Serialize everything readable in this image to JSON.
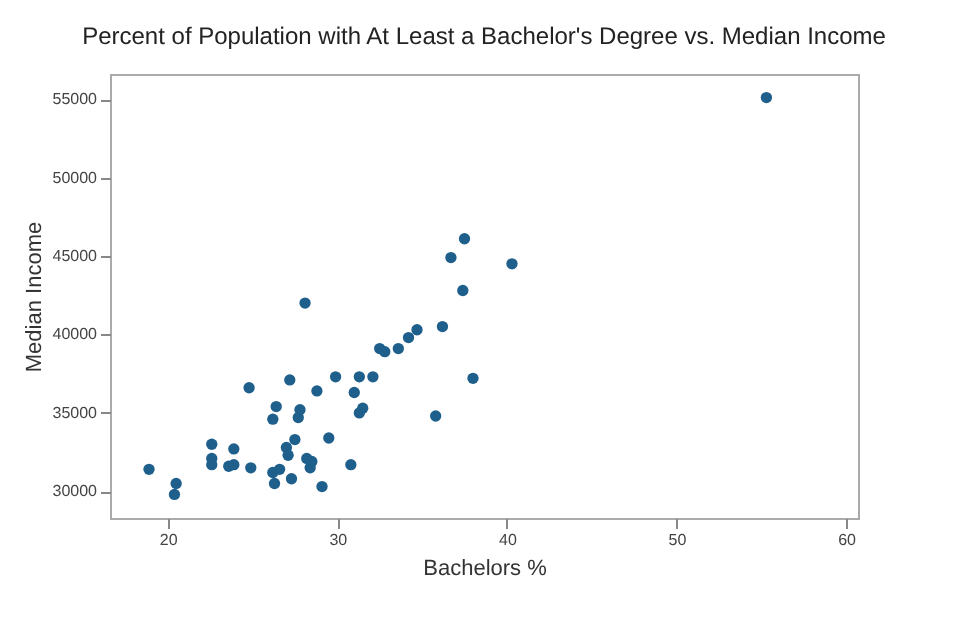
{
  "chart_data": {
    "type": "scatter",
    "title": "Percent of Population with At Least a Bachelor's Degree vs. Median Income",
    "xlabel": "Bachelors %",
    "ylabel": "Median Income",
    "x": [
      18.9,
      20.5,
      20.4,
      22.6,
      22.6,
      22.6,
      23.9,
      23.6,
      23.9,
      24.8,
      24.9,
      26.2,
      26.4,
      26.2,
      26.6,
      26.3,
      27.0,
      27.1,
      27.2,
      27.3,
      27.5,
      27.7,
      27.8,
      28.1,
      28.2,
      28.4,
      28.5,
      28.8,
      29.1,
      29.5,
      29.9,
      30.8,
      31.0,
      31.3,
      31.3,
      31.5,
      32.1,
      32.5,
      32.8,
      33.6,
      34.2,
      34.7,
      35.8,
      36.2,
      36.7,
      37.4,
      37.5,
      38.0,
      40.3,
      55.3
    ],
    "series": [
      {
        "color": "#1f5f8b",
        "values": [
          31400,
          30500,
          29800,
          33000,
          32100,
          31700,
          32700,
          31600,
          31700,
          36600,
          31500,
          34600,
          35400,
          31200,
          31400,
          30500,
          32800,
          32300,
          37100,
          30800,
          33300,
          34700,
          35200,
          42000,
          32100,
          31500,
          31900,
          36400,
          30300,
          33400,
          37300,
          31700,
          36300,
          37300,
          35000,
          35300,
          37300,
          39100,
          38900,
          39100,
          39800,
          40300,
          34800,
          40500,
          44900,
          42800,
          46100,
          37200,
          44500,
          55100
        ]
      }
    ],
    "xlim": [
      16.6,
      60.7
    ],
    "ylim": [
      28300,
      56600
    ],
    "xticks": [
      20,
      30,
      40,
      50,
      60
    ],
    "yticks": [
      30000,
      35000,
      40000,
      45000,
      50000,
      55000
    ],
    "grid": false,
    "marker": "circle"
  }
}
